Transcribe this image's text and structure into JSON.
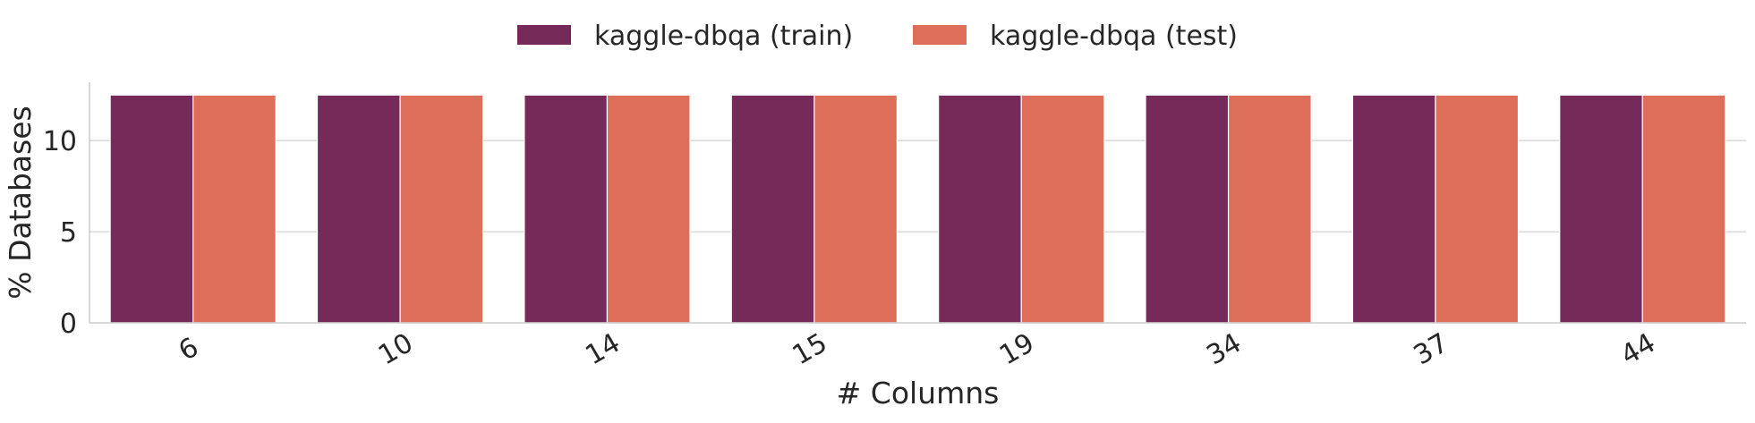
{
  "chart_data": {
    "type": "bar",
    "title": "",
    "xlabel": "# Columns",
    "ylabel": "% Databases",
    "categories": [
      "6",
      "10",
      "14",
      "15",
      "19",
      "34",
      "37",
      "44"
    ],
    "series": [
      {
        "name": "kaggle-dbqa (train)",
        "color": "#762a59",
        "values": [
          12.5,
          12.5,
          12.5,
          12.5,
          12.5,
          12.5,
          12.5,
          12.5
        ]
      },
      {
        "name": "kaggle-dbqa (test)",
        "color": "#dd6e5a",
        "values": [
          12.5,
          12.5,
          12.5,
          12.5,
          12.5,
          12.5,
          12.5,
          12.5
        ]
      }
    ],
    "ylim": [
      0,
      13.2
    ],
    "yticks": [
      0,
      5,
      10
    ],
    "grid": "horizontal",
    "legend_position": "top-center",
    "xtick_rotation": "rotated"
  }
}
